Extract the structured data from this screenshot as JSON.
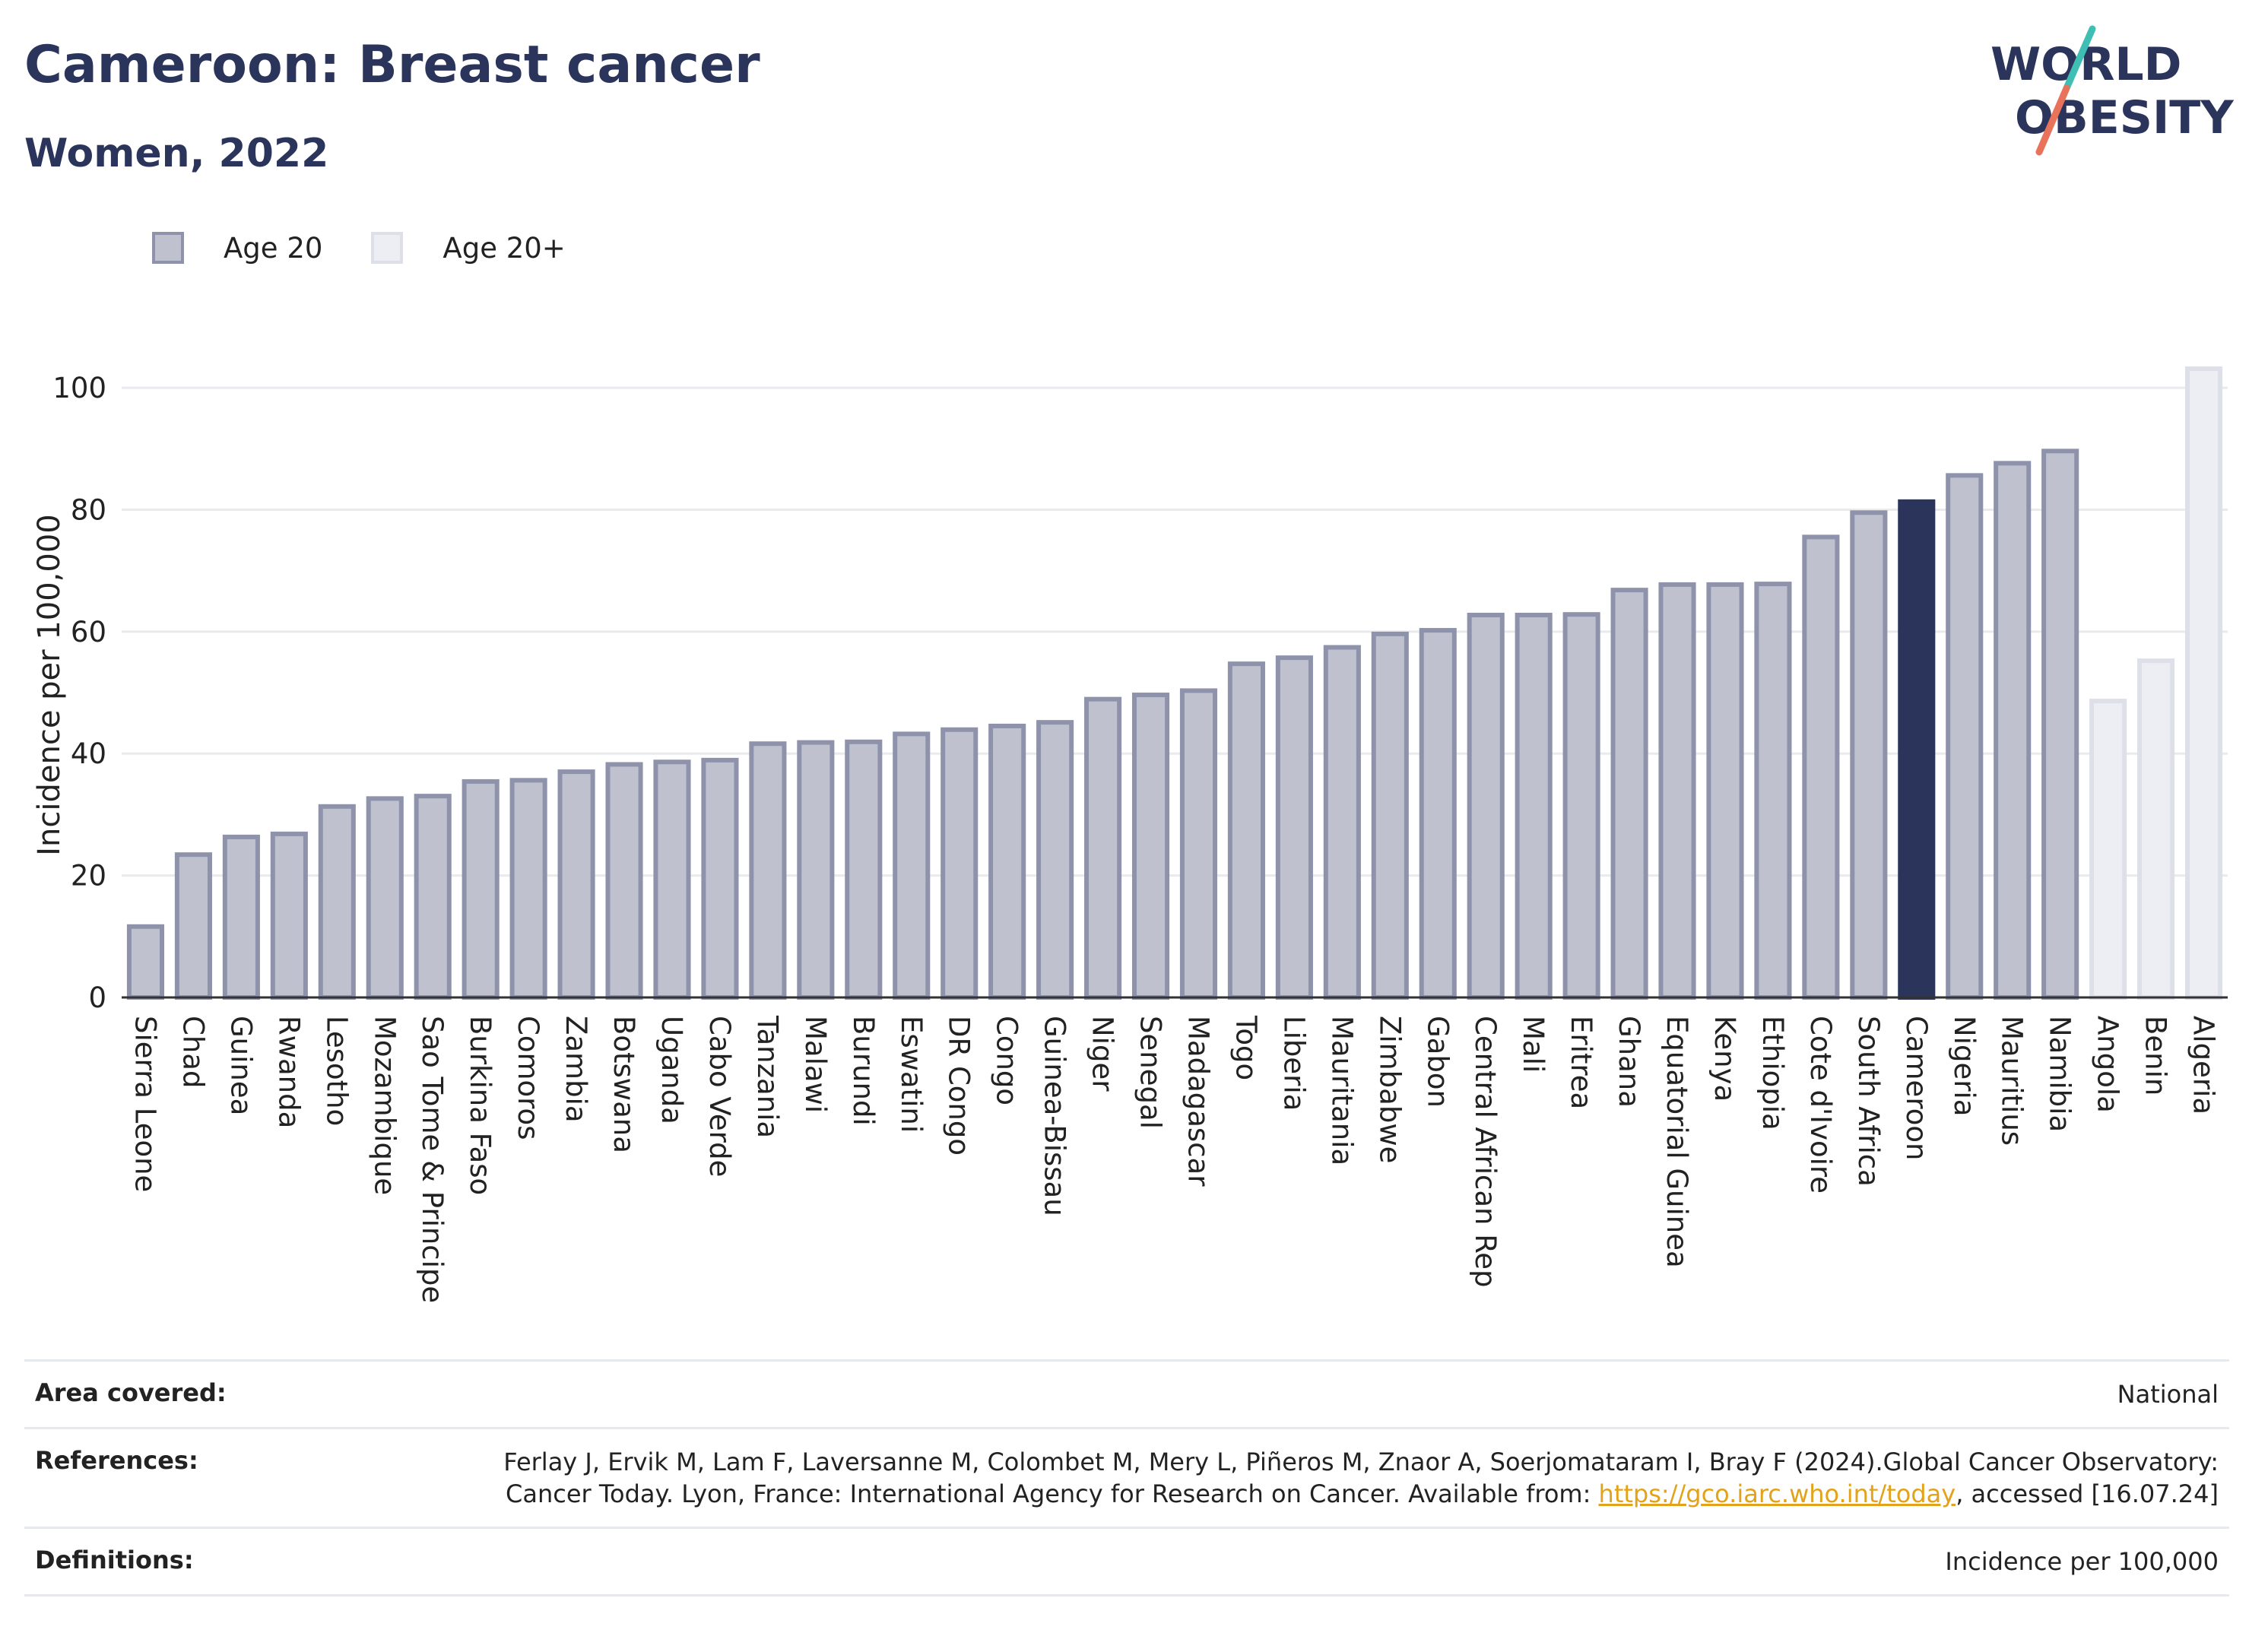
{
  "header": {
    "title": "Cameroon: Breast cancer",
    "subtitle": "Women, 2022"
  },
  "logo": {
    "line1": "WORLD",
    "line2": "OBESITY",
    "colors": {
      "text": "#2b355c",
      "slash_teal": "#3fbfb4",
      "slash_red": "#e8735a"
    }
  },
  "legend": {
    "items": [
      {
        "label": "Age 20",
        "color": "#bfc1cf",
        "stroke": "#8e93ab"
      },
      {
        "label": "Age 20+",
        "color": "#eceef3",
        "stroke": "#dde0e8"
      }
    ]
  },
  "chart_data": {
    "type": "bar",
    "ylabel": "Incidence per 100,000",
    "ylim": [
      0,
      105
    ],
    "yticks": [
      0,
      20,
      40,
      60,
      80,
      100
    ],
    "grid": true,
    "colors": {
      "age20_fill": "#bfc1cf",
      "age20_stroke": "#8e93ab",
      "age20plus_fill": "#eceef3",
      "age20plus_stroke": "#dde0e8",
      "highlight": "#2b355c",
      "gridline": "#e8eaee",
      "axis": "#333333"
    },
    "bars": [
      {
        "category": "Sierra Leone",
        "value": 12.0,
        "series": "Age 20"
      },
      {
        "category": "Chad",
        "value": 23.8,
        "series": "Age 20"
      },
      {
        "category": "Guinea",
        "value": 26.7,
        "series": "Age 20"
      },
      {
        "category": "Rwanda",
        "value": 27.2,
        "series": "Age 20"
      },
      {
        "category": "Lesotho",
        "value": 31.7,
        "series": "Age 20"
      },
      {
        "category": "Mozambique",
        "value": 33.0,
        "series": "Age 20"
      },
      {
        "category": "Sao Tome & Principe",
        "value": 33.4,
        "series": "Age 20"
      },
      {
        "category": "Burkina Faso",
        "value": 35.8,
        "series": "Age 20"
      },
      {
        "category": "Comoros",
        "value": 36.0,
        "series": "Age 20"
      },
      {
        "category": "Zambia",
        "value": 37.4,
        "series": "Age 20"
      },
      {
        "category": "Botswana",
        "value": 38.6,
        "series": "Age 20"
      },
      {
        "category": "Uganda",
        "value": 39.0,
        "series": "Age 20"
      },
      {
        "category": "Cabo Verde",
        "value": 39.3,
        "series": "Age 20"
      },
      {
        "category": "Tanzania",
        "value": 42.0,
        "series": "Age 20"
      },
      {
        "category": "Malawi",
        "value": 42.2,
        "series": "Age 20"
      },
      {
        "category": "Burundi",
        "value": 42.3,
        "series": "Age 20"
      },
      {
        "category": "Eswatini",
        "value": 43.6,
        "series": "Age 20"
      },
      {
        "category": "DR Congo",
        "value": 44.3,
        "series": "Age 20"
      },
      {
        "category": "Congo",
        "value": 44.9,
        "series": "Age 20"
      },
      {
        "category": "Guinea-Bissau",
        "value": 45.5,
        "series": "Age 20"
      },
      {
        "category": "Niger",
        "value": 49.3,
        "series": "Age 20"
      },
      {
        "category": "Senegal",
        "value": 50.0,
        "series": "Age 20"
      },
      {
        "category": "Madagascar",
        "value": 50.7,
        "series": "Age 20"
      },
      {
        "category": "Togo",
        "value": 55.1,
        "series": "Age 20"
      },
      {
        "category": "Liberia",
        "value": 56.1,
        "series": "Age 20"
      },
      {
        "category": "Mauritania",
        "value": 57.8,
        "series": "Age 20"
      },
      {
        "category": "Zimbabwe",
        "value": 60.0,
        "series": "Age 20"
      },
      {
        "category": "Gabon",
        "value": 60.6,
        "series": "Age 20"
      },
      {
        "category": "Central African Rep",
        "value": 63.1,
        "series": "Age 20"
      },
      {
        "category": "Mali",
        "value": 63.1,
        "series": "Age 20"
      },
      {
        "category": "Eritrea",
        "value": 63.2,
        "series": "Age 20"
      },
      {
        "category": "Ghana",
        "value": 67.2,
        "series": "Age 20"
      },
      {
        "category": "Equatorial Guinea",
        "value": 68.1,
        "series": "Age 20"
      },
      {
        "category": "Kenya",
        "value": 68.1,
        "series": "Age 20"
      },
      {
        "category": "Ethiopia",
        "value": 68.2,
        "series": "Age 20"
      },
      {
        "category": "Cote d'Ivoire",
        "value": 75.9,
        "series": "Age 20"
      },
      {
        "category": "South Africa",
        "value": 79.9,
        "series": "Age 20"
      },
      {
        "category": "Cameroon",
        "value": 81.7,
        "series": "Age 20",
        "highlight": true
      },
      {
        "category": "Nigeria",
        "value": 86.0,
        "series": "Age 20"
      },
      {
        "category": "Mauritius",
        "value": 88.0,
        "series": "Age 20"
      },
      {
        "category": "Namibia",
        "value": 90.0,
        "series": "Age 20"
      },
      {
        "category": "Angola",
        "value": 49.0,
        "series": "Age 20+"
      },
      {
        "category": "Benin",
        "value": 55.6,
        "series": "Age 20+"
      },
      {
        "category": "Algeria",
        "value": 103.5,
        "series": "Age 20+"
      }
    ]
  },
  "footer": {
    "rows": [
      {
        "label": "Area covered:",
        "value": "National"
      },
      {
        "label": "References:",
        "value_before": "Ferlay J, Ervik M, Lam F, Laversanne M, Colombet M, Mery L, Piñeros M, Znaor A, Soerjomataram I, Bray F (2024).Global Cancer Observatory: Cancer Today. Lyon, France: International Agency for Research on Cancer. Available from: ",
        "link": "https://gco.iarc.who.int/today",
        "value_after": ", accessed [16.07.24]"
      },
      {
        "label": "Definitions:",
        "value": "Incidence per 100,000"
      }
    ]
  }
}
